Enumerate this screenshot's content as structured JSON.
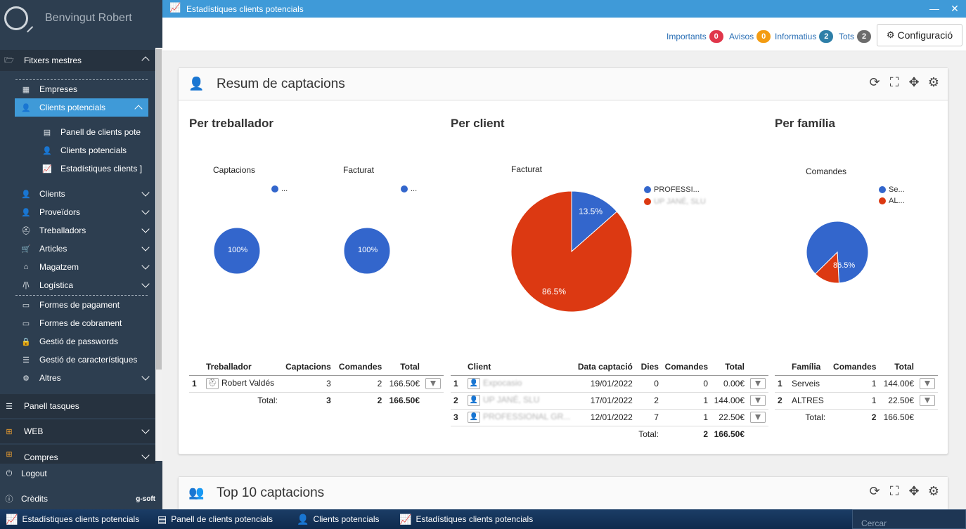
{
  "sidebar": {
    "welcome": "Benvingut Robert",
    "sections": [
      {
        "label": "Fitxers mestres",
        "icon": "folder-open-icon"
      },
      {
        "label": "Empreses",
        "icon": "building-icon"
      },
      {
        "label": "Clients potencials",
        "icon": "user-plus-icon"
      },
      {
        "label": "Panell de clients pote",
        "icon": "dashboard-icon"
      },
      {
        "label": "Clients potencials",
        "icon": "user-plus-icon"
      },
      {
        "label": "Estadístiques clients ]",
        "icon": "chart-line-icon"
      },
      {
        "label": "Clients",
        "icon": "user-icon"
      },
      {
        "label": "Proveïdors",
        "icon": "supplier-icon"
      },
      {
        "label": "Treballadors",
        "icon": "worker-icon"
      },
      {
        "label": "Articles",
        "icon": "cart-icon"
      },
      {
        "label": "Magatzem",
        "icon": "warehouse-icon"
      },
      {
        "label": "Logística",
        "icon": "road-icon"
      },
      {
        "label": "Formes de pagament",
        "icon": "credit-card-icon"
      },
      {
        "label": "Formes de cobrament",
        "icon": "money-icon"
      },
      {
        "label": "Gestió de passwords",
        "icon": "lock-icon"
      },
      {
        "label": "Gestió de característiques",
        "icon": "list-icon"
      },
      {
        "label": "Altres",
        "icon": "gears-icon"
      },
      {
        "label": "Panell tasques",
        "icon": "tasks-icon"
      },
      {
        "label": "WEB",
        "icon": "sitemap-icon"
      },
      {
        "label": "Compres",
        "icon": "shop-icon"
      }
    ],
    "logout": "Logout",
    "credits": "Crèdits",
    "brand": "g-soft"
  },
  "titlebar": {
    "title": "Estadístiques clients potencials"
  },
  "notifications": {
    "importants": {
      "label": "Importants",
      "count": "0",
      "color": "#e0364a"
    },
    "avisos": {
      "label": "Avisos",
      "count": "0",
      "color": "#f39c12"
    },
    "informatius": {
      "label": "Informatius",
      "count": "2",
      "color": "#2e7fa8"
    },
    "tots": {
      "label": "Tots",
      "count": "2",
      "color": "#6c6c6c"
    },
    "config_label": "Configuració"
  },
  "panel1": {
    "title": "Resum de captacions",
    "per_treballador": {
      "title": "Per treballador",
      "chart1_label": "Captacions",
      "chart1_pct": "100%",
      "chart2_label": "Facturat",
      "chart2_pct": "100%",
      "legend": "..."
    },
    "per_client": {
      "title": "Per client",
      "chart_label": "Facturat",
      "legend": [
        "PROFESSI...",
        "UP JANÉ, SLU"
      ],
      "slice1_pct": "13.5%",
      "slice2_pct": "86.5%"
    },
    "per_familia": {
      "title": "Per família",
      "chart_label": "Comandes",
      "legend": [
        "Se...",
        "AL..."
      ],
      "slice1_pct": "86.5%"
    },
    "table_treballador": {
      "headers": [
        "Treballador",
        "Captacions",
        "Comandes",
        "Total"
      ],
      "rows": [
        {
          "n": "1",
          "name": "Robert Valdés",
          "captacions": "3",
          "comandes": "2",
          "total": "166.50€"
        }
      ],
      "total_label": "Total:",
      "total_captacions": "3",
      "total_comandes": "2",
      "total_total": "166.50€"
    },
    "table_client": {
      "headers": [
        "Client",
        "Data captació",
        "Dies",
        "Comandes",
        "Total"
      ],
      "rows": [
        {
          "n": "1",
          "name": "Expocasio",
          "data": "19/01/2022",
          "dies": "0",
          "comandes": "0",
          "total": "0.00€"
        },
        {
          "n": "2",
          "name": "UP JANÉ, SLU",
          "data": "17/01/2022",
          "dies": "2",
          "comandes": "1",
          "total": "144.00€"
        },
        {
          "n": "3",
          "name": "PROFESSIONAL GR...",
          "data": "12/01/2022",
          "dies": "7",
          "comandes": "1",
          "total": "22.50€"
        }
      ],
      "total_label": "Total:",
      "total_comandes": "2",
      "total_total": "166.50€"
    },
    "table_familia": {
      "headers": [
        "Família",
        "Comandes",
        "Total"
      ],
      "rows": [
        {
          "n": "1",
          "name": "Serveis",
          "comandes": "1",
          "total": "144.00€"
        },
        {
          "n": "2",
          "name": "ALTRES",
          "comandes": "1",
          "total": "22.50€"
        }
      ],
      "total_label": "Total:",
      "total_comandes": "2",
      "total_total": "166.50€"
    }
  },
  "panel2": {
    "title": "Top 10 captacions"
  },
  "taskbar": {
    "items": [
      "Estadístiques clients potencials",
      "Panell de clients potencials",
      "Clients potencials",
      "Estadístiques clients potencials"
    ],
    "search_placeholder": "Cercar"
  },
  "chart_data": [
    {
      "type": "pie",
      "title": "Captacions",
      "categories": [
        "..."
      ],
      "values": [
        100
      ],
      "colors": [
        "#3366cc"
      ]
    },
    {
      "type": "pie",
      "title": "Facturat",
      "categories": [
        "..."
      ],
      "values": [
        100
      ],
      "colors": [
        "#3366cc"
      ]
    },
    {
      "type": "pie",
      "title": "Facturat",
      "categories": [
        "PROFESSI...",
        "UP JANÉ, SLU"
      ],
      "values": [
        13.5,
        86.5
      ],
      "colors": [
        "#3366cc",
        "#dc3912"
      ]
    },
    {
      "type": "pie",
      "title": "Comandes",
      "categories": [
        "Se...",
        "AL..."
      ],
      "values": [
        86.5,
        13.5
      ],
      "colors": [
        "#3366cc",
        "#dc3912"
      ]
    }
  ]
}
